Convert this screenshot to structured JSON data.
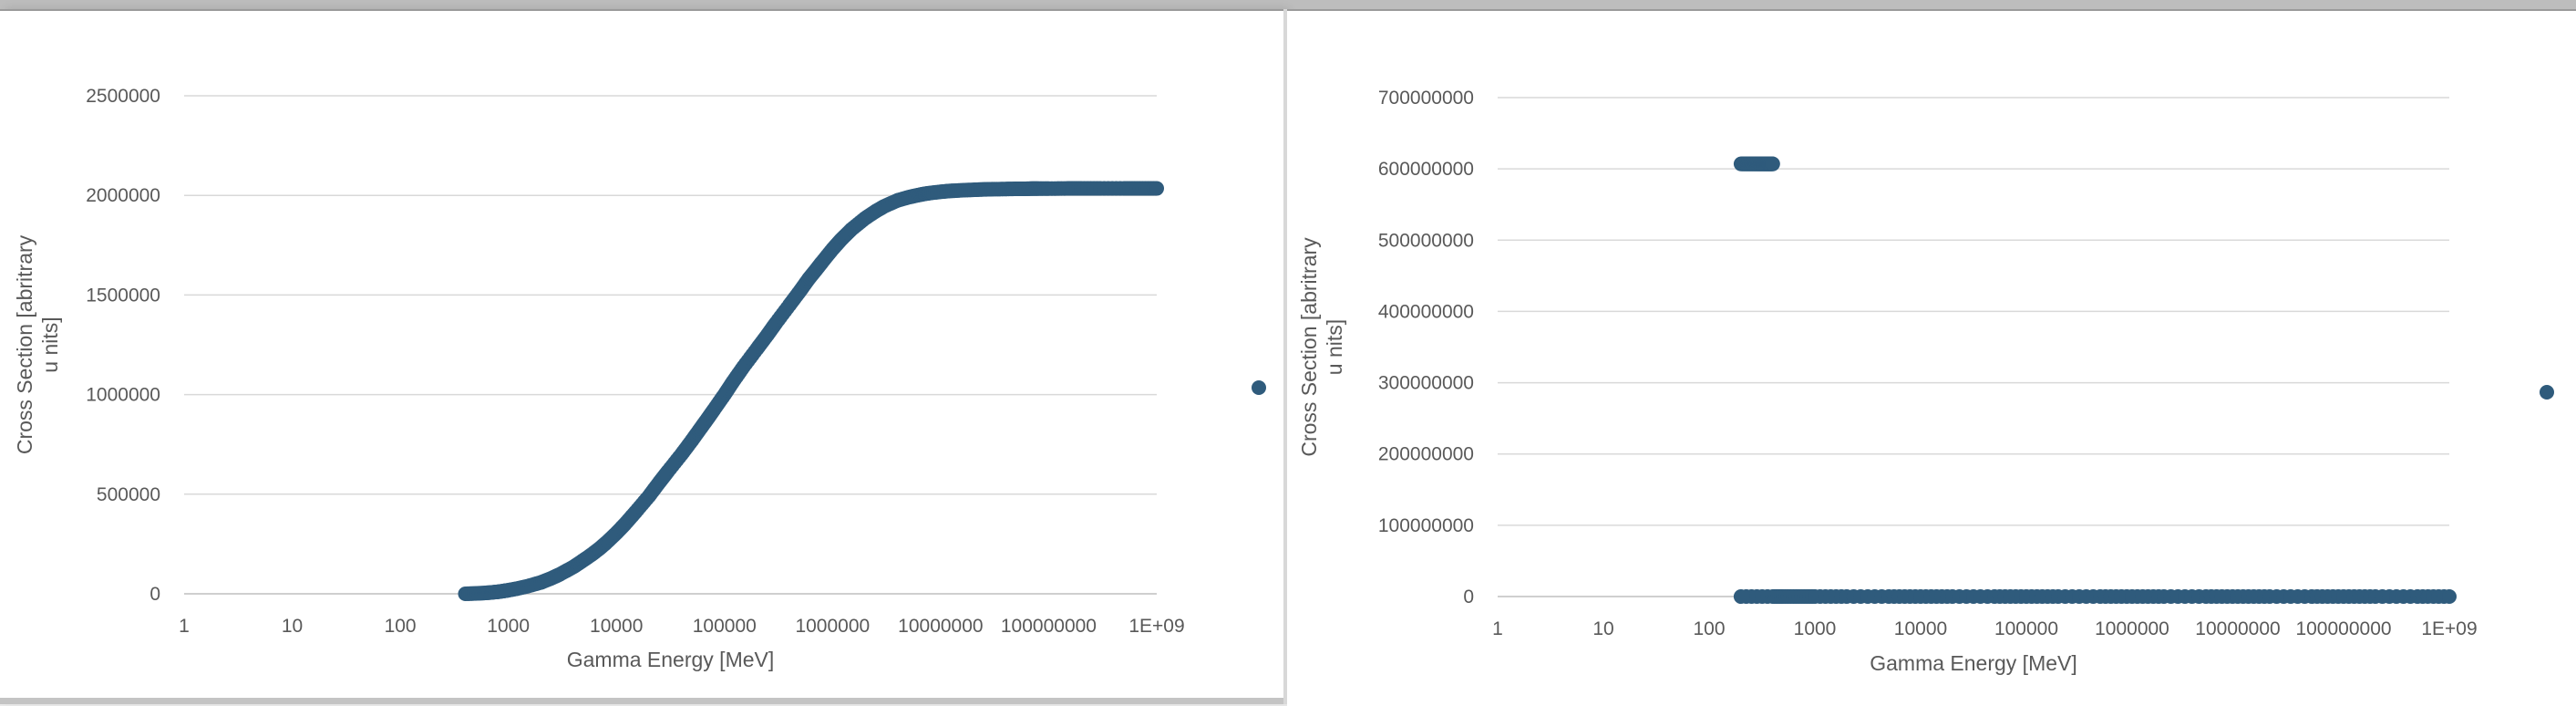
{
  "colors": {
    "marker": "#2f5b7c",
    "grid": "#d9d9d9",
    "text": "#595959"
  },
  "chart_data": [
    {
      "type": "scatter",
      "title": "",
      "xlabel": "Gamma Energy [MeV]",
      "ylabel": "Cross Section [abritrary units]",
      "ylabel_lines": [
        "Cross Section [abritrary",
        "u nits]"
      ],
      "x_scale": "log",
      "xlim": [
        1,
        1000000000
      ],
      "ylim": [
        0,
        2500000
      ],
      "x_ticks": [
        "1",
        "10",
        "100",
        "1000",
        "10000",
        "100000",
        "1000000",
        "10000000",
        "100000000",
        "1E+09"
      ],
      "y_ticks": [
        "0",
        "500000",
        "1000000",
        "1500000",
        "2000000",
        "2500000"
      ],
      "grid": true,
      "legend": "top-right",
      "legend_marker": true,
      "series": [
        {
          "x": [
            400,
            500,
            600,
            700,
            800,
            900,
            1000,
            1200,
            1500,
            2000,
            2500,
            3000,
            4000,
            5000,
            6000,
            7000,
            8000,
            10000,
            12000,
            15000,
            20000,
            25000,
            30000,
            40000,
            50000,
            60000,
            70000,
            80000,
            100000,
            120000,
            150000,
            200000,
            250000,
            300000,
            400000,
            500000,
            600000,
            700000,
            800000,
            1000000,
            1200000,
            1500000,
            2000000,
            2500000,
            3000000,
            4000000,
            5000000,
            6000000,
            7000000,
            8000000,
            10000000,
            12000000,
            15000000,
            20000000,
            25000000,
            30000000,
            40000000,
            50000000,
            60000000,
            70000000,
            80000000,
            100000000,
            150000000,
            200000000,
            300000000,
            500000000,
            700000000,
            1000000000
          ],
          "y": [
            0,
            2000,
            4000,
            7000,
            10000,
            14000,
            18000,
            26000,
            38000,
            57000,
            78000,
            98000,
            135000,
            170000,
            200000,
            228000,
            255000,
            305000,
            350000,
            410000,
            490000,
            560000,
            615000,
            700000,
            770000,
            830000,
            880000,
            925000,
            1000000,
            1065000,
            1140000,
            1230000,
            1300000,
            1360000,
            1450000,
            1520000,
            1580000,
            1625000,
            1665000,
            1730000,
            1778000,
            1830000,
            1885000,
            1920000,
            1945000,
            1975000,
            1990000,
            2000000,
            2007000,
            2012000,
            2018000,
            2022000,
            2025000,
            2028000,
            2030000,
            2031000,
            2032000,
            2033000,
            2033000,
            2034000,
            2034000,
            2034000,
            2035000,
            2035000,
            2035000,
            2035000,
            2035000,
            2035000
          ]
        }
      ]
    },
    {
      "type": "scatter",
      "title": "",
      "xlabel": "Gamma Energy [MeV]",
      "ylabel": "Cross Section [abritrary units]",
      "ylabel_lines": [
        "Cross Section [abritrary",
        "u nits]"
      ],
      "x_scale": "log",
      "xlim": [
        1,
        1000000000
      ],
      "ylim": [
        0,
        700000000
      ],
      "x_ticks": [
        "1",
        "10",
        "100",
        "1000",
        "10000",
        "100000",
        "1000000",
        "10000000",
        "100000000",
        "1E+09"
      ],
      "y_ticks": [
        "0",
        "100000000",
        "200000000",
        "300000000",
        "400000000",
        "500000000",
        "600000000",
        "700000000"
      ],
      "grid": true,
      "legend": "top-right",
      "legend_marker": true,
      "series": [
        {
          "x": [
            200,
            220,
            240,
            260,
            280,
            300,
            320,
            340,
            360,
            380,
            400,
            200,
            400,
            500,
            700,
            1000,
            2000,
            5000,
            10000,
            20000,
            50000,
            100000,
            200000,
            500000,
            1000000,
            2000000,
            5000000,
            10000000,
            20000000,
            50000000,
            100000000,
            200000000,
            500000000,
            1000000000
          ],
          "y": [
            607000000,
            607000000,
            607000000,
            607000000,
            607000000,
            607000000,
            607000000,
            607000000,
            607000000,
            607000000,
            607000000,
            0,
            0,
            0,
            0,
            0,
            0,
            0,
            0,
            0,
            0,
            0,
            0,
            0,
            0,
            0,
            0,
            0,
            0,
            0,
            0,
            0,
            0,
            0
          ]
        }
      ]
    }
  ]
}
